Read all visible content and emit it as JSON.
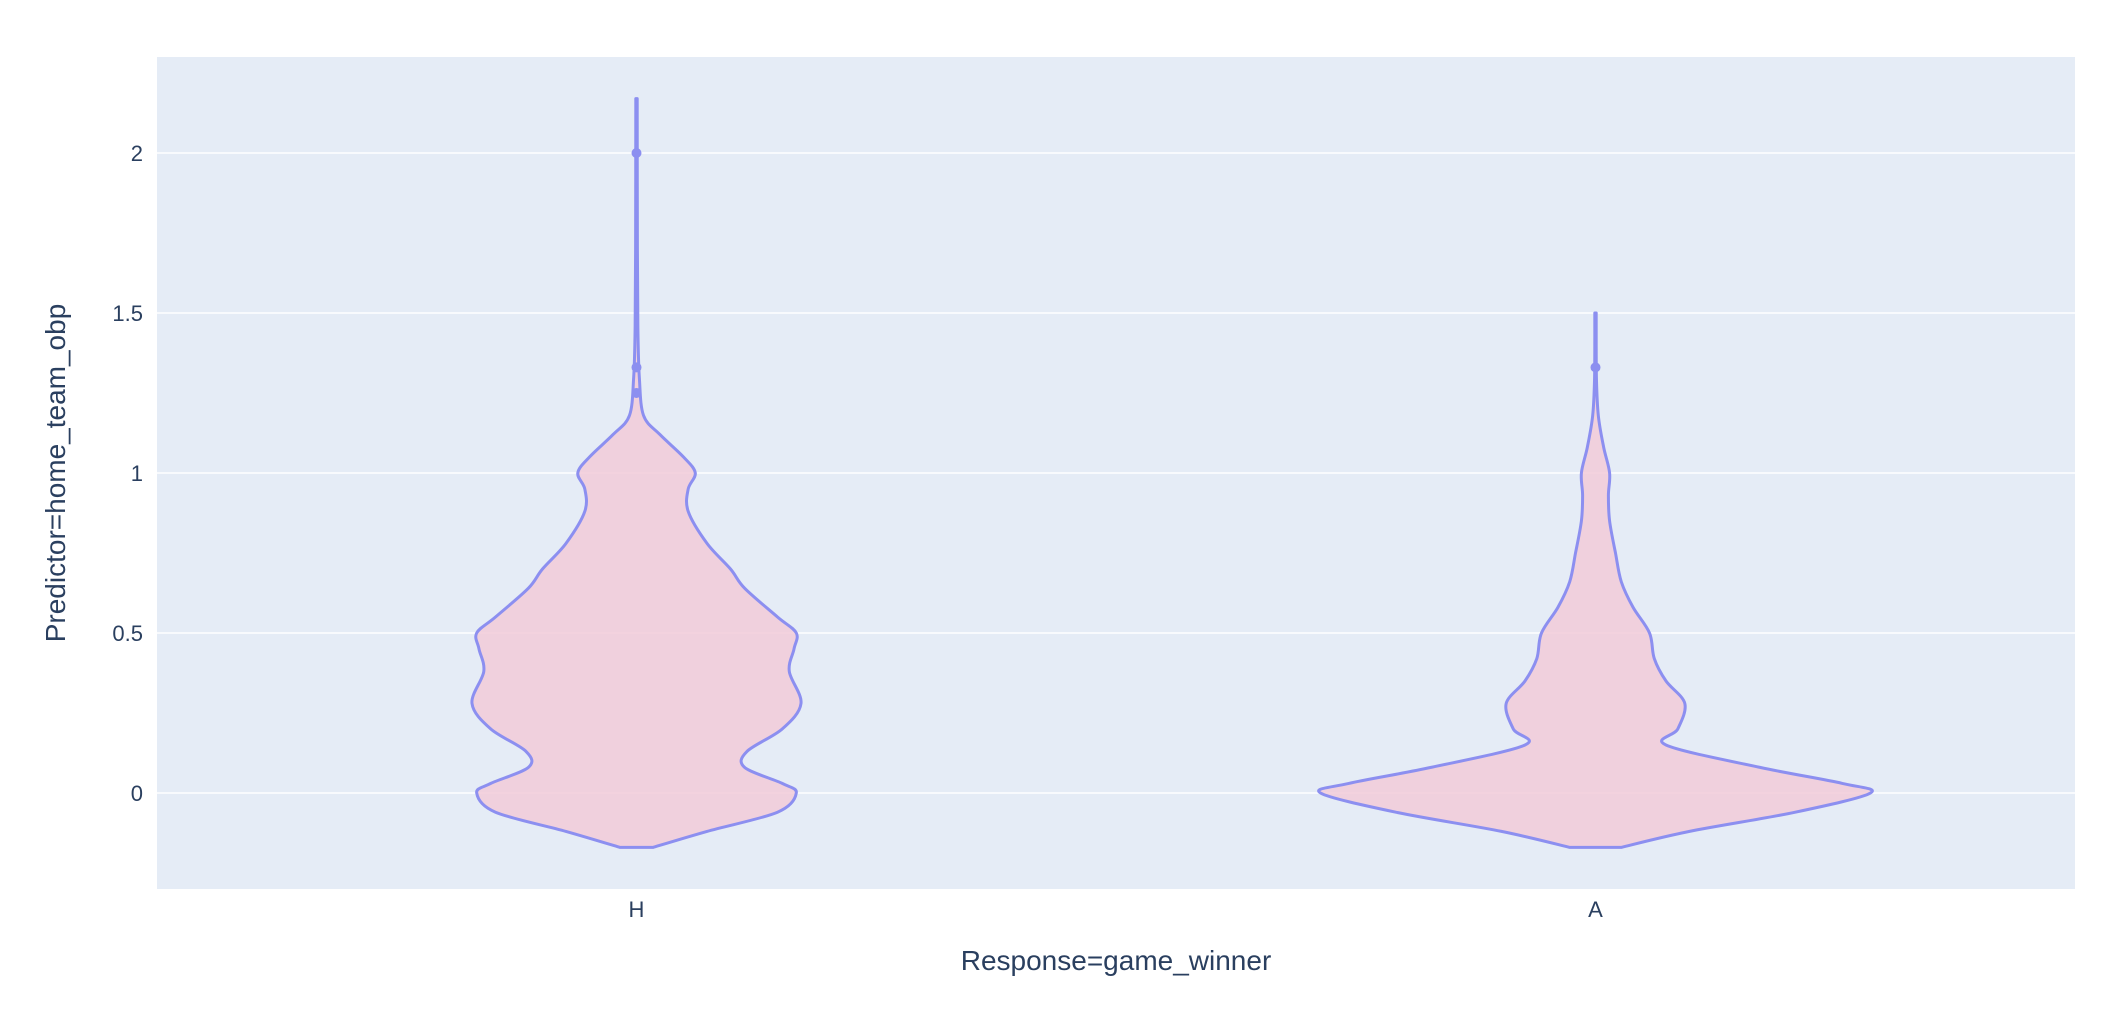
{
  "chart_data": {
    "type": "violin",
    "xlabel": "Response=game_winner",
    "ylabel": "Predictor=home_team_obp",
    "categories": [
      "H",
      "A"
    ],
    "ylim": [
      -0.3,
      2.3
    ],
    "yticks": [
      0,
      0.5,
      1,
      1.5,
      2
    ],
    "ytick_labels": [
      "0",
      "0.5",
      "1",
      "1.5",
      "2"
    ],
    "grid": true,
    "colors": {
      "plot_bg": "#E5ECF6",
      "grid": "#ffffff",
      "violin_line": "#8C8FF0",
      "violin_fill": "#F2CBD8",
      "text": "#2a3f5f"
    },
    "series": [
      {
        "category": "H",
        "min": -0.17,
        "max": 2.17,
        "outliers": [
          2.0,
          1.33,
          1.25
        ],
        "profile": [
          [
            -0.17,
            0.07
          ],
          [
            -0.12,
            0.3
          ],
          [
            -0.06,
            0.6
          ],
          [
            0.0,
            0.68
          ],
          [
            0.03,
            0.62
          ],
          [
            0.08,
            0.46
          ],
          [
            0.13,
            0.47
          ],
          [
            0.2,
            0.62
          ],
          [
            0.28,
            0.7
          ],
          [
            0.38,
            0.65
          ],
          [
            0.45,
            0.67
          ],
          [
            0.5,
            0.68
          ],
          [
            0.55,
            0.6
          ],
          [
            0.64,
            0.46
          ],
          [
            0.7,
            0.4
          ],
          [
            0.78,
            0.3
          ],
          [
            0.88,
            0.22
          ],
          [
            0.95,
            0.22
          ],
          [
            1.0,
            0.25
          ],
          [
            1.05,
            0.2
          ],
          [
            1.12,
            0.1
          ],
          [
            1.18,
            0.03
          ],
          [
            1.3,
            0.012
          ],
          [
            1.45,
            0.006
          ],
          [
            1.7,
            0.004
          ],
          [
            2.17,
            0.003
          ]
        ]
      },
      {
        "category": "A",
        "min": -0.17,
        "max": 1.5,
        "outliers": [
          1.33
        ],
        "profile": [
          [
            -0.17,
            0.11
          ],
          [
            -0.12,
            0.4
          ],
          [
            -0.06,
            0.85
          ],
          [
            0.0,
            1.17
          ],
          [
            0.03,
            1.05
          ],
          [
            0.08,
            0.7
          ],
          [
            0.15,
            0.3
          ],
          [
            0.2,
            0.35
          ],
          [
            0.28,
            0.38
          ],
          [
            0.35,
            0.3
          ],
          [
            0.42,
            0.25
          ],
          [
            0.5,
            0.23
          ],
          [
            0.58,
            0.16
          ],
          [
            0.66,
            0.11
          ],
          [
            0.75,
            0.085
          ],
          [
            0.85,
            0.06
          ],
          [
            0.93,
            0.055
          ],
          [
            1.0,
            0.06
          ],
          [
            1.08,
            0.035
          ],
          [
            1.18,
            0.012
          ],
          [
            1.3,
            0.004
          ],
          [
            1.5,
            0.003
          ]
        ]
      }
    ]
  }
}
